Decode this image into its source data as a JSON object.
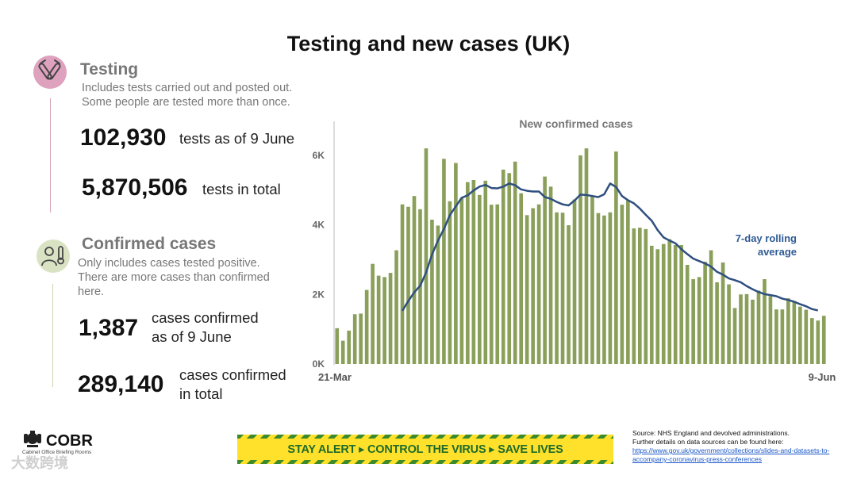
{
  "title": "Testing and new cases (UK)",
  "testing": {
    "heading": "Testing",
    "desc1": "Includes tests carried out and posted out.",
    "desc2": "Some people are tested more than once.",
    "stat1_value": "102,930",
    "stat1_label": "tests as of 9 June",
    "stat2_value": "5,870,506",
    "stat2_label": "tests in total"
  },
  "cases": {
    "heading": "Confirmed cases",
    "desc1": "Only includes cases tested positive.",
    "desc2": "There are more cases than confirmed",
    "desc3": "here.",
    "stat1_value": "1,387",
    "stat1_label1": "cases confirmed",
    "stat1_label2": "as of 9 June",
    "stat2_value": "289,140",
    "stat2_label1": "cases confirmed",
    "stat2_label2": "in total"
  },
  "footer": {
    "org": "COBR",
    "org_sub": "Cabinet Office Briefing Rooms",
    "banner_1": "STAY ALERT",
    "banner_2": "CONTROL THE VIRUS",
    "banner_3": "SAVE LIVES",
    "source_line1": "Source: NHS England and devolved administrations.",
    "source_line2": "Further details on data sources can be found here:",
    "source_link": "https://www.gov.uk/government/collections/slides-and-datasets-to-accompany-coronavirus-press-conferences",
    "watermark": "大数跨境"
  },
  "colors": {
    "bar": "#8aa05a",
    "line": "#2f4f7f",
    "banner_bg": "#ffe12b",
    "banner_text": "#1e6b2a"
  },
  "chart_data": {
    "type": "bar",
    "title": "New confirmed cases",
    "x_start_label": "21-Mar",
    "x_end_label": "9-Jun",
    "y_ticks": [
      0,
      2000,
      4000,
      6000
    ],
    "y_tick_labels": [
      "0K",
      "2K",
      "4K",
      "6K"
    ],
    "ylim": [
      0,
      7000
    ],
    "series": [
      {
        "name": "New confirmed cases",
        "values": [
          1030,
          670,
          960,
          1430,
          1450,
          2130,
          2880,
          2540,
          2500,
          2620,
          3270,
          4590,
          4520,
          4830,
          4450,
          6200,
          4150,
          3980,
          5900,
          4680,
          5780,
          4770,
          5230,
          5290,
          4860,
          5270,
          4580,
          4590,
          5590,
          5490,
          5820,
          4910,
          4280,
          4480,
          4590,
          5390,
          5100,
          4360,
          4350,
          3990,
          4730,
          6000,
          6200,
          4830,
          4340,
          4270,
          4360,
          6110,
          4580,
          4700,
          3900,
          3920,
          3880,
          3400,
          3300,
          3450,
          3590,
          3420,
          3420,
          2850,
          2440,
          2500,
          2940,
          3270,
          2350,
          2920,
          2290,
          1610,
          2000,
          2010,
          1850,
          2110,
          2440,
          1950,
          1570,
          1570,
          1890,
          1810,
          1650,
          1560,
          1320,
          1250,
          1387
        ]
      },
      {
        "name": "7-day rolling average",
        "label1": "7-day rolling",
        "label2": "average",
        "start_index": 11,
        "values": [
          1530,
          1810,
          2060,
          2250,
          2630,
          3150,
          3550,
          3880,
          4280,
          4530,
          4780,
          4850,
          4990,
          5100,
          5150,
          5060,
          5050,
          5100,
          5190,
          5140,
          5020,
          4980,
          4960,
          4960,
          4800,
          4750,
          4660,
          4590,
          4560,
          4700,
          4870,
          4860,
          4830,
          4800,
          4880,
          5190,
          5090,
          4830,
          4710,
          4620,
          4470,
          4290,
          4120,
          3850,
          3640,
          3550,
          3470,
          3300,
          3160,
          3030,
          2960,
          2890,
          2800,
          2650,
          2570,
          2460,
          2410,
          2350,
          2240,
          2150,
          2070,
          2010,
          1980,
          1950,
          1880,
          1840,
          1790,
          1720,
          1660,
          1580,
          1540
        ]
      }
    ]
  }
}
